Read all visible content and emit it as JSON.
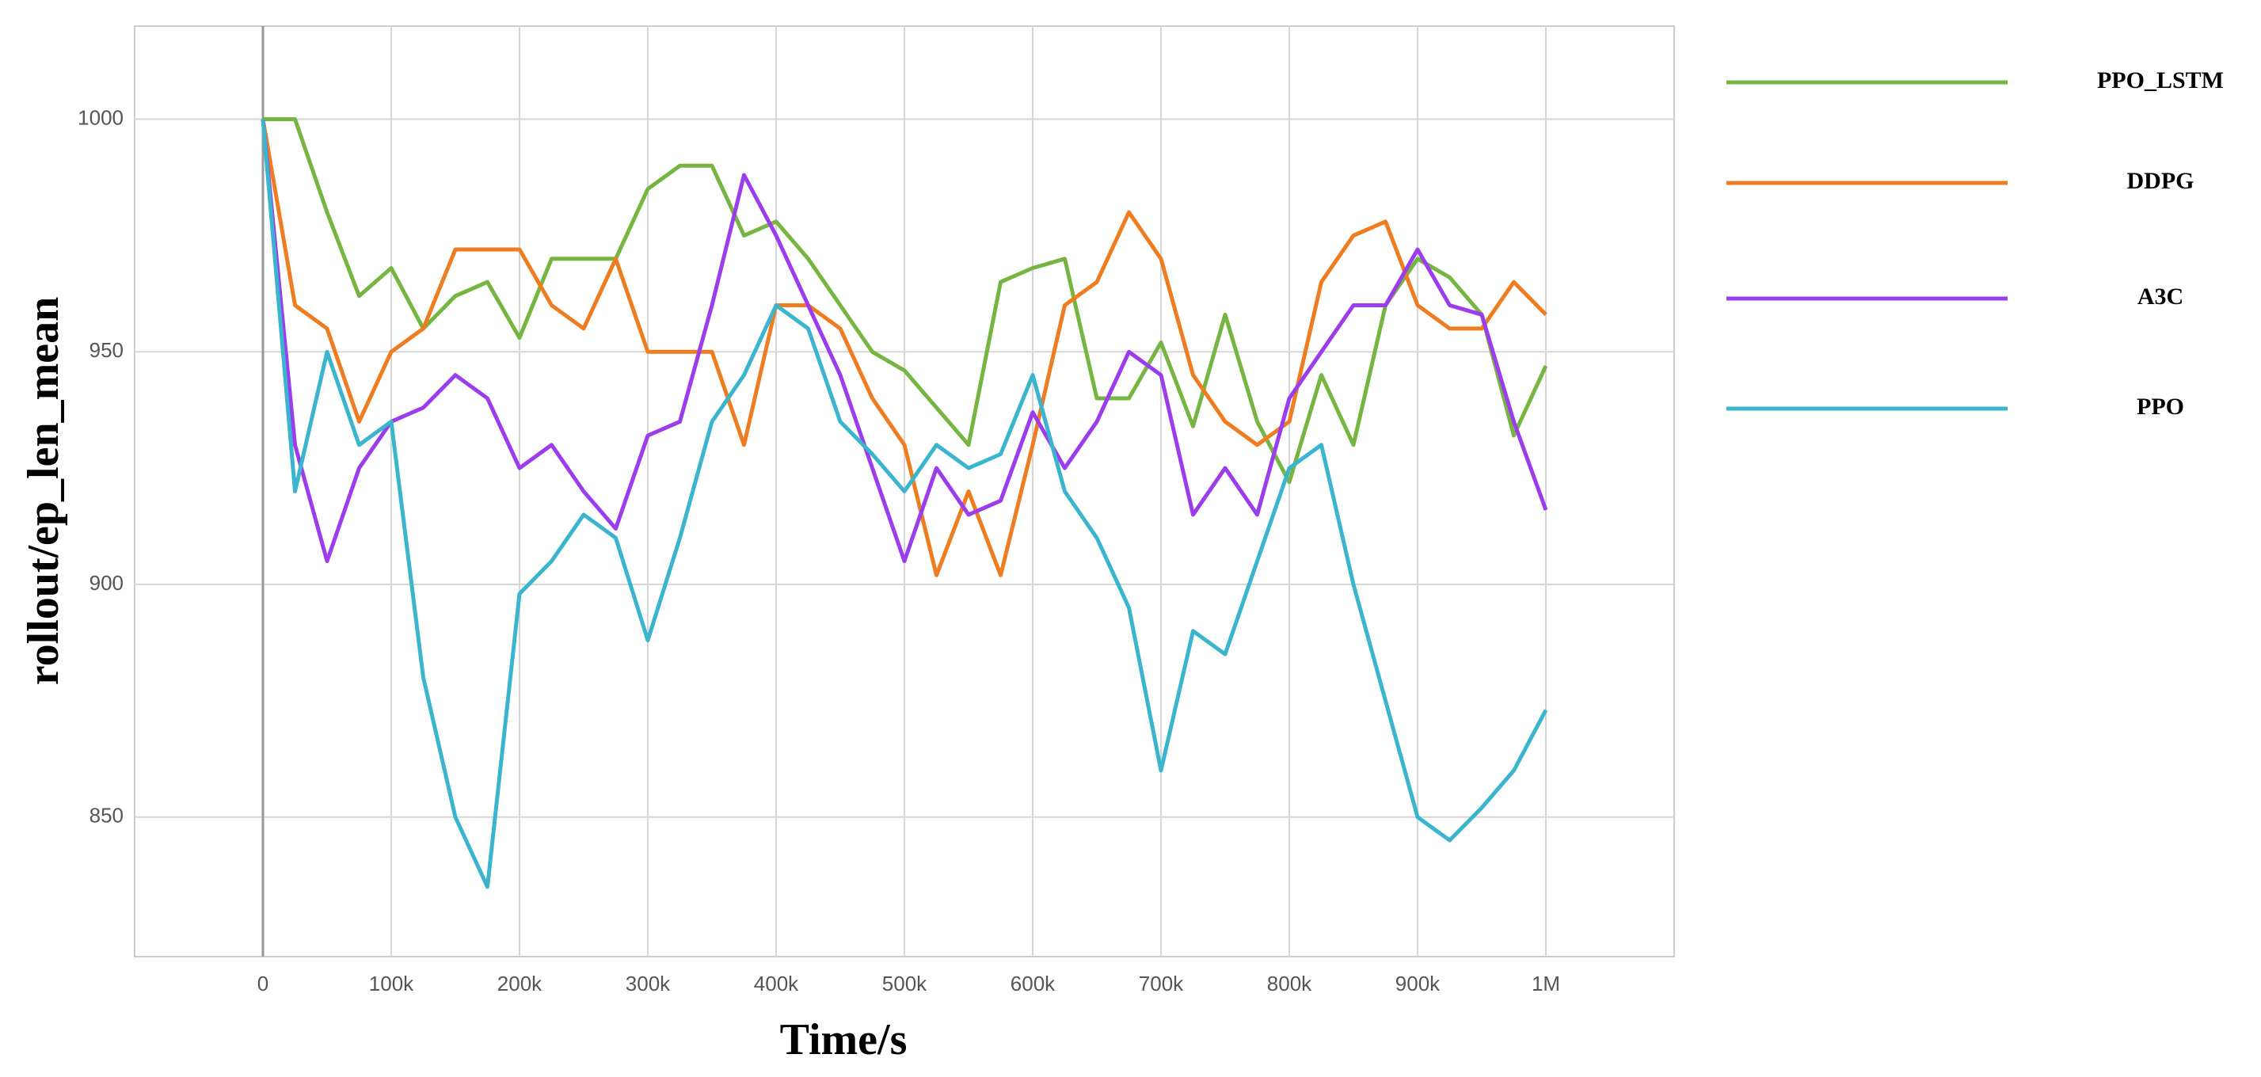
{
  "chart_data": {
    "type": "line",
    "x_label": "Time/s",
    "y_label": "rollout/ep_len_mean",
    "x": [
      0,
      25000,
      50000,
      75000,
      100000,
      125000,
      150000,
      175000,
      200000,
      225000,
      250000,
      275000,
      300000,
      325000,
      350000,
      375000,
      400000,
      425000,
      450000,
      475000,
      500000,
      525000,
      550000,
      575000,
      600000,
      625000,
      650000,
      675000,
      700000,
      725000,
      750000,
      775000,
      800000,
      825000,
      850000,
      875000,
      900000,
      925000,
      950000,
      975000,
      1000000
    ],
    "series": [
      {
        "name": "PPO_LSTM",
        "color": "#77b543",
        "values": [
          1000,
          1000,
          980,
          962,
          968,
          955,
          962,
          965,
          953,
          970,
          970,
          970,
          985,
          990,
          990,
          975,
          978,
          970,
          960,
          950,
          946,
          938,
          930,
          965,
          968,
          970,
          940,
          940,
          952,
          934,
          958,
          935,
          922,
          945,
          930,
          960,
          970,
          966,
          958,
          932,
          947
        ]
      },
      {
        "name": "DDPG",
        "color": "#ee7d22",
        "values": [
          1000,
          960,
          955,
          935,
          950,
          955,
          972,
          972,
          972,
          960,
          955,
          970,
          950,
          950,
          950,
          930,
          960,
          960,
          955,
          940,
          930,
          902,
          920,
          902,
          930,
          960,
          965,
          980,
          970,
          945,
          935,
          930,
          935,
          965,
          975,
          978,
          960,
          955,
          955,
          965,
          958
        ]
      },
      {
        "name": "A3C",
        "color": "#9b3ded",
        "values": [
          1000,
          930,
          905,
          925,
          935,
          938,
          945,
          940,
          925,
          930,
          920,
          912,
          932,
          935,
          960,
          988,
          975,
          960,
          945,
          925,
          905,
          925,
          915,
          918,
          937,
          925,
          935,
          950,
          945,
          915,
          925,
          915,
          940,
          950,
          960,
          960,
          972,
          960,
          958,
          935,
          916
        ]
      },
      {
        "name": "PPO",
        "color": "#3ab5cd",
        "values": [
          1000,
          920,
          950,
          930,
          935,
          880,
          850,
          835,
          898,
          905,
          915,
          910,
          888,
          910,
          935,
          945,
          960,
          955,
          935,
          928,
          920,
          930,
          925,
          928,
          945,
          920,
          910,
          895,
          860,
          890,
          885,
          905,
          925,
          930,
          900,
          875,
          850,
          845,
          852,
          860,
          873
        ]
      }
    ],
    "xlim": [
      -100000,
      1100000
    ],
    "xticks": [
      0,
      {
        "value": 100000,
        "label": "100k"
      },
      {
        "value": 200000,
        "label": "200k"
      },
      {
        "value": 300000,
        "label": "300k"
      },
      {
        "value": 400000,
        "label": "400k"
      },
      {
        "value": 500000,
        "label": "500k"
      },
      {
        "value": 600000,
        "label": "600k"
      },
      {
        "value": 700000,
        "label": "700k"
      },
      {
        "value": 800000,
        "label": "800k"
      },
      {
        "value": 900000,
        "label": "900k"
      },
      {
        "value": 1000000,
        "label": "1M"
      }
    ],
    "ylim": [
      820,
      1020
    ],
    "yticks": [
      850,
      900,
      950,
      1000
    ],
    "grid": true,
    "legend": "right"
  }
}
